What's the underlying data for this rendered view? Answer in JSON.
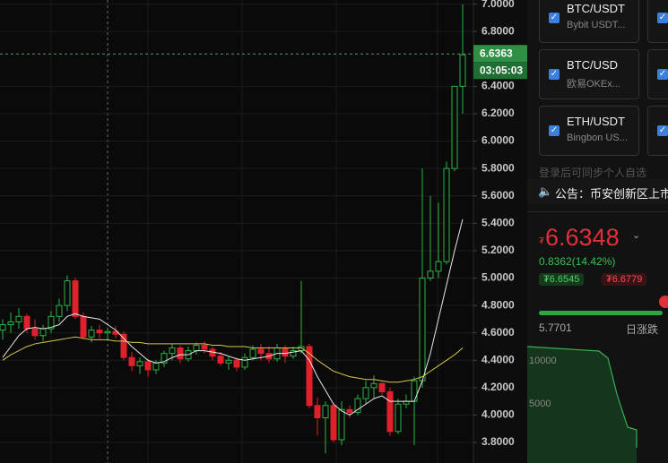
{
  "chart_data": {
    "type": "candlestick",
    "open": [
      4.62,
      4.66,
      4.68,
      4.72,
      4.63,
      4.58,
      4.63,
      4.72,
      4.8,
      4.98,
      4.72,
      4.57,
      4.62,
      4.6,
      4.61,
      4.59,
      4.42,
      4.36,
      4.39,
      4.33,
      4.38,
      4.45,
      4.49,
      4.41,
      4.47,
      4.51,
      4.48,
      4.43,
      4.38,
      4.4,
      4.35,
      4.42,
      4.48,
      4.45,
      4.41,
      4.49,
      4.43,
      4.47,
      4.5,
      4.07,
      3.98,
      4.07,
      3.82,
      4.04,
      4.02,
      4.12,
      4.2,
      4.23,
      4.17,
      3.88,
      4.08,
      4.1,
      4.25,
      5.0,
      5.05,
      5.12,
      5.8,
      6.4
    ],
    "high": [
      4.7,
      4.75,
      4.78,
      4.74,
      4.7,
      4.66,
      4.76,
      4.85,
      5.02,
      5.0,
      4.75,
      4.65,
      4.66,
      4.64,
      4.65,
      4.61,
      4.46,
      4.42,
      4.41,
      4.4,
      4.47,
      4.52,
      4.51,
      4.5,
      4.53,
      4.54,
      4.5,
      4.46,
      4.43,
      4.42,
      4.45,
      4.51,
      4.52,
      4.5,
      4.52,
      4.51,
      4.5,
      4.98,
      4.52,
      4.13,
      4.1,
      4.09,
      4.1,
      4.07,
      4.15,
      4.25,
      4.29,
      4.24,
      4.2,
      4.12,
      4.15,
      4.28,
      5.8,
      5.6,
      5.55,
      5.85,
      6.4,
      7.0
    ],
    "low": [
      4.55,
      4.6,
      4.63,
      4.6,
      4.55,
      4.54,
      4.6,
      4.68,
      4.76,
      4.7,
      4.55,
      4.53,
      4.56,
      4.55,
      4.56,
      4.4,
      4.32,
      4.3,
      4.28,
      4.3,
      4.35,
      4.4,
      4.38,
      4.39,
      4.44,
      4.45,
      4.4,
      4.36,
      4.33,
      4.32,
      4.33,
      4.4,
      4.4,
      4.38,
      4.39,
      4.38,
      4.41,
      4.45,
      4.05,
      3.85,
      3.72,
      3.8,
      3.78,
      3.98,
      4.0,
      4.08,
      4.12,
      4.15,
      3.85,
      3.86,
      4.05,
      3.78,
      4.2,
      4.98,
      5.0,
      5.1,
      5.78,
      6.2
    ],
    "close": [
      4.66,
      4.68,
      4.72,
      4.63,
      4.58,
      4.63,
      4.72,
      4.8,
      4.98,
      4.72,
      4.57,
      4.62,
      4.6,
      4.61,
      4.59,
      4.42,
      4.36,
      4.39,
      4.33,
      4.38,
      4.45,
      4.49,
      4.41,
      4.47,
      4.51,
      4.48,
      4.43,
      4.38,
      4.4,
      4.35,
      4.42,
      4.48,
      4.45,
      4.41,
      4.49,
      4.43,
      4.47,
      4.5,
      4.07,
      3.98,
      4.07,
      3.82,
      4.04,
      4.02,
      4.12,
      4.2,
      4.23,
      4.17,
      3.88,
      4.08,
      4.1,
      4.25,
      5.0,
      5.05,
      5.12,
      5.8,
      6.4,
      6.63
    ],
    "up_color": "#2fb344",
    "down_color": "#e0202a",
    "lines": [
      {
        "color": "#e8e8e8",
        "values": [
          4.42,
          4.5,
          4.58,
          4.63,
          4.64,
          4.63,
          4.64,
          4.66,
          4.72,
          4.74,
          4.72,
          4.71,
          4.7,
          4.66,
          4.62,
          4.56,
          4.5,
          4.45,
          4.4,
          4.38,
          4.39,
          4.42,
          4.44,
          4.44,
          4.47,
          4.47,
          4.46,
          4.45,
          4.43,
          4.41,
          4.4,
          4.41,
          4.42,
          4.43,
          4.45,
          4.45,
          4.46,
          4.47,
          4.4,
          4.28,
          4.18,
          4.08,
          4.03,
          4.0,
          4.04,
          4.08,
          4.12,
          4.14,
          4.1,
          4.1,
          4.1,
          4.1,
          4.25,
          4.45,
          4.7,
          4.95,
          5.2,
          5.43
        ]
      },
      {
        "color": "#d8c84a",
        "values": [
          4.4,
          4.44,
          4.47,
          4.5,
          4.52,
          4.53,
          4.54,
          4.55,
          4.56,
          4.57,
          4.56,
          4.55,
          4.55,
          4.55,
          4.54,
          4.54,
          4.53,
          4.53,
          4.52,
          4.52,
          4.52,
          4.52,
          4.52,
          4.52,
          4.52,
          4.52,
          4.51,
          4.51,
          4.5,
          4.5,
          4.5,
          4.49,
          4.49,
          4.49,
          4.49,
          4.49,
          4.49,
          4.49,
          4.45,
          4.4,
          4.36,
          4.32,
          4.3,
          4.28,
          4.27,
          4.26,
          4.26,
          4.25,
          4.24,
          4.24,
          4.25,
          4.26,
          4.28,
          4.32,
          4.36,
          4.4,
          4.44,
          4.49
        ]
      }
    ],
    "ylim": [
      3.65,
      7.03
    ],
    "yticks": [
      {
        "value": 7.0,
        "label": "7.0000"
      },
      {
        "value": 6.8,
        "label": "6.8000"
      },
      {
        "value": 6.4,
        "label": "6.4000"
      },
      {
        "value": 6.2,
        "label": "6.2000"
      },
      {
        "value": 6.0,
        "label": "6.0000"
      },
      {
        "value": 5.8,
        "label": "5.8000"
      },
      {
        "value": 5.6,
        "label": "5.6000"
      },
      {
        "value": 5.4,
        "label": "5.4000"
      },
      {
        "value": 5.2,
        "label": "5.2000"
      },
      {
        "value": 5.0,
        "label": "5.0000"
      },
      {
        "value": 4.8,
        "label": "4.8000"
      },
      {
        "value": 4.6,
        "label": "4.6000"
      },
      {
        "value": 4.4,
        "label": "4.4000"
      },
      {
        "value": 4.2,
        "label": "4.2000"
      },
      {
        "value": 4.0,
        "label": "4.0000"
      },
      {
        "value": 3.8,
        "label": "3.8000"
      }
    ],
    "grid": true,
    "crosshair_price": 6.6363,
    "countdown": "03:05:03"
  },
  "watchlist": {
    "cards": [
      {
        "pair": "BTC/USDT",
        "source": "Bybit USDT..."
      },
      {
        "pair": "BTC/USD",
        "source": "欧易OKEx..."
      },
      {
        "pair": "ETH/USDT",
        "source": "Bingbon US..."
      }
    ],
    "login_hint": "登录后可同步个人自选"
  },
  "announcement": "公告：币安创新区上市",
  "ticker": {
    "currency": "₮",
    "last": 6.6348,
    "change": "0.8362(14.42%)",
    "bid": "₮6.6545",
    "ask": "₮6.6779",
    "low": 5.7701,
    "range_label": "日涨跌"
  },
  "depth": {
    "ticks": [
      10000,
      5000
    ]
  }
}
